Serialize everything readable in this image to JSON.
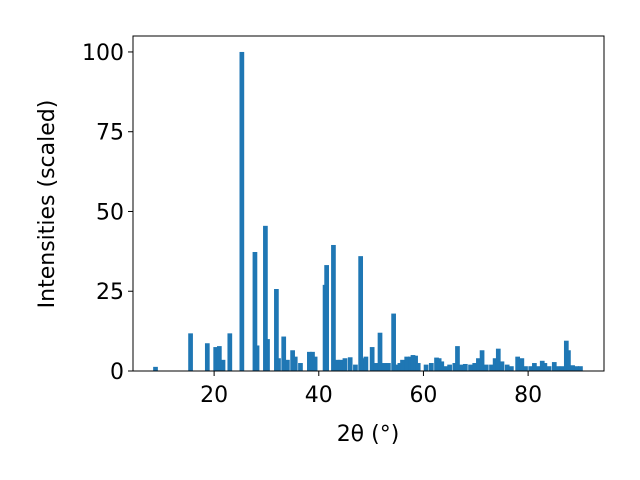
{
  "chart_data": {
    "type": "bar",
    "xlabel": "2θ (°)",
    "ylabel": "Intensities (scaled)",
    "color": "#1f77b4",
    "x": [
      8.8,
      15.5,
      18.7,
      20.3,
      21.0,
      21.7,
      23.0,
      25.3,
      27.8,
      28.2,
      29.8,
      30.2,
      31.9,
      32.3,
      33.3,
      34.0,
      35.0,
      35.5,
      36.5,
      38.2,
      38.8,
      39.3,
      41.2,
      41.5,
      42.8,
      43.5,
      44.2,
      45.0,
      46.0,
      47.0,
      48.0,
      48.5,
      49.0,
      50.2,
      51.0,
      51.7,
      52.5,
      53.3,
      54.3,
      55.0,
      55.5,
      56.0,
      56.8,
      57.5,
      58.0,
      58.5,
      59.0,
      60.5,
      61.5,
      62.5,
      63.0,
      63.5,
      64.3,
      65.0,
      66.0,
      66.5,
      67.3,
      68.0,
      69.0,
      69.8,
      70.5,
      71.2,
      72.0,
      73.0,
      73.7,
      74.3,
      75.0,
      76.0,
      76.8,
      78.0,
      78.8,
      79.5,
      80.5,
      81.2,
      82.0,
      82.7,
      83.2,
      84.0,
      85.0,
      85.7,
      86.5,
      87.3,
      87.7,
      88.5,
      89.3,
      90.0
    ],
    "values": [
      1.3,
      11.8,
      8.7,
      7.5,
      7.8,
      3.5,
      11.8,
      100,
      37.3,
      8,
      45.5,
      10,
      25.7,
      4,
      10.8,
      3.5,
      6.5,
      4.5,
      2.5,
      6,
      6,
      4.5,
      27,
      33.2,
      39.5,
      3.5,
      3.5,
      4,
      4.3,
      2,
      36,
      4,
      4.5,
      7.5,
      2.5,
      12,
      2.5,
      2.5,
      18,
      2,
      2.5,
      3.5,
      4.5,
      4.5,
      5,
      4.8,
      2.5,
      2,
      2.5,
      4.2,
      4,
      3,
      1.5,
      2,
      2.5,
      7.8,
      2,
      2.2,
      2,
      2.5,
      4,
      6.5,
      2,
      2,
      4,
      7,
      3,
      2,
      1.5,
      4.5,
      4,
      1.5,
      1.5,
      2.5,
      1.5,
      3.2,
      2.5,
      1.5,
      2.8,
      1.5,
      1.5,
      9.5,
      6.5,
      1.8,
      1.5,
      1.5
    ],
    "xlim": [
      4.5,
      94.5
    ],
    "xticks": [
      20,
      40,
      60,
      80
    ],
    "ylim": [
      0,
      105
    ],
    "yticks": [
      0,
      25,
      50,
      75,
      100
    ]
  }
}
